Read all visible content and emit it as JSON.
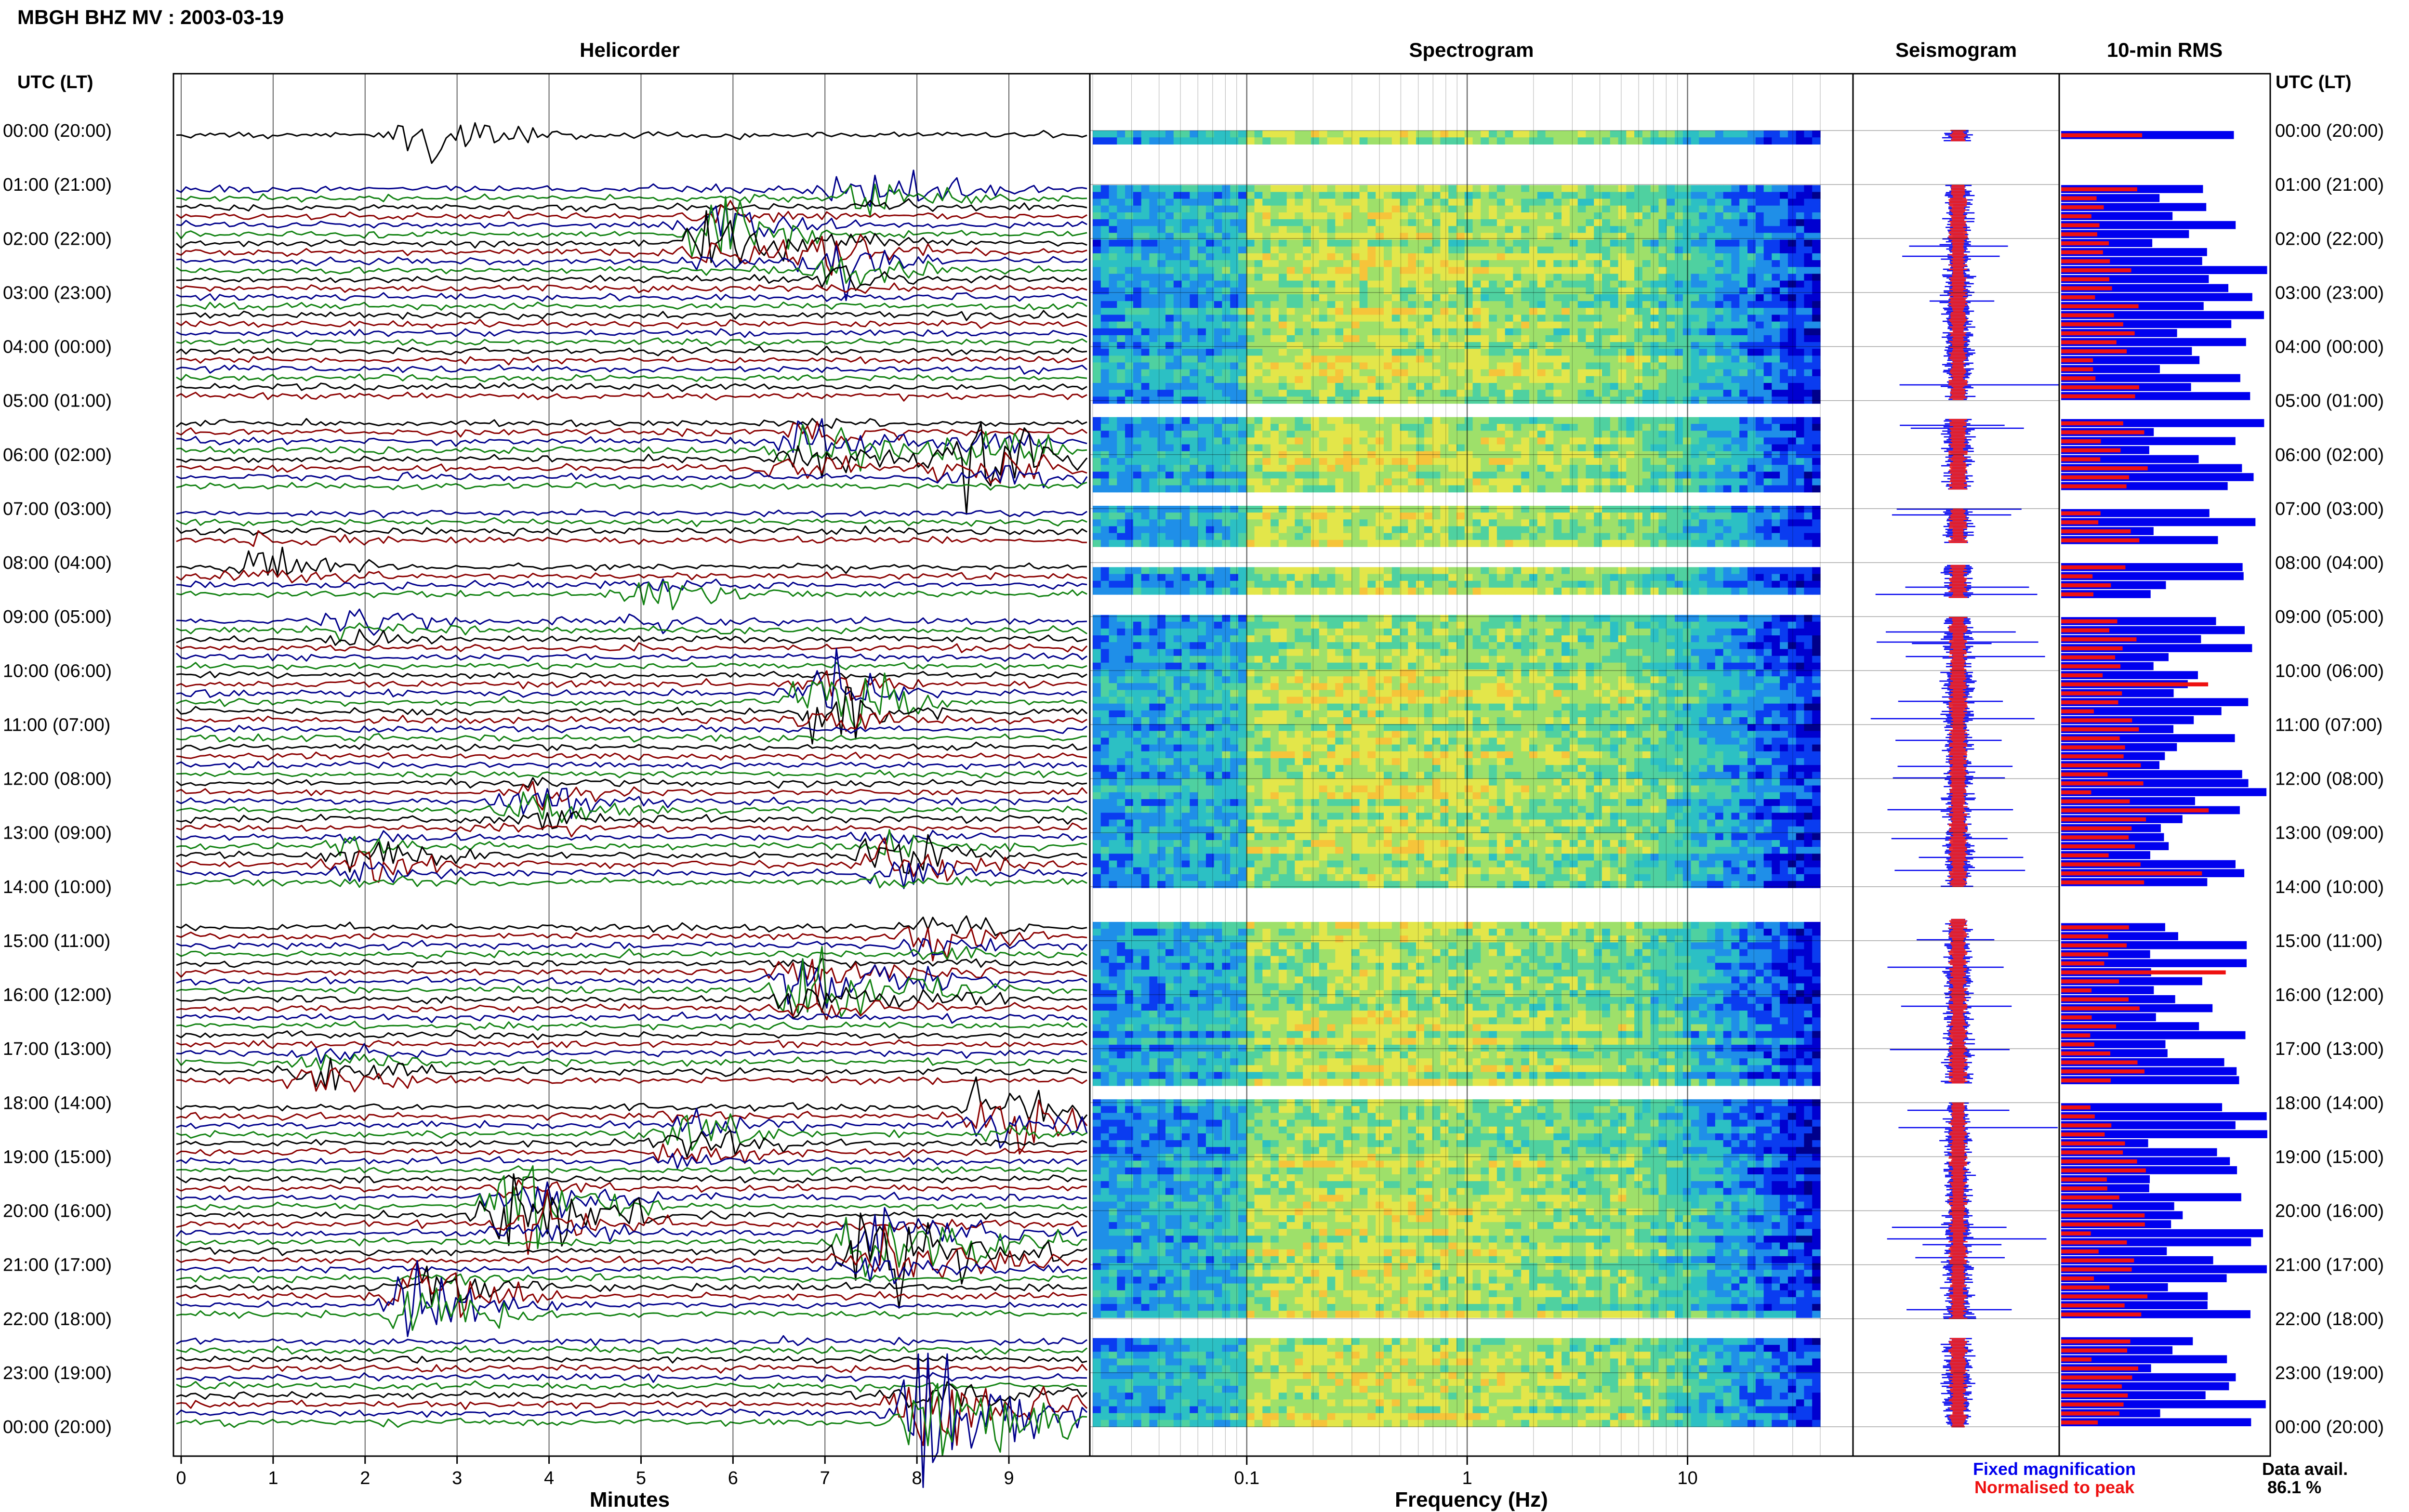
{
  "page": {
    "title": "MBGH BHZ MV : 2003-03-19",
    "utc_label_left": "UTC (LT)",
    "utc_label_right": "UTC (LT)"
  },
  "panels": {
    "helicorder": "Helicorder",
    "spectrogram": "Spectrogram",
    "seismogram": "Seismogram",
    "rms": "10-min RMS"
  },
  "axes": {
    "minutes_label": "Minutes",
    "minute_ticks": [
      "0",
      "1",
      "2",
      "3",
      "4",
      "5",
      "6",
      "7",
      "8",
      "9"
    ],
    "frequency_label": "Frequency (Hz)",
    "frequency_ticks": [
      "0.1",
      "1",
      "10"
    ]
  },
  "time_labels": [
    "00:00 (20:00)",
    "01:00 (21:00)",
    "02:00 (22:00)",
    "03:00 (23:00)",
    "04:00 (00:00)",
    "05:00 (01:00)",
    "06:00 (02:00)",
    "07:00 (03:00)",
    "08:00 (04:00)",
    "09:00 (05:00)",
    "10:00 (06:00)",
    "11:00 (07:00)",
    "12:00 (08:00)",
    "13:00 (09:00)",
    "14:00 (10:00)",
    "15:00 (11:00)",
    "16:00 (12:00)",
    "17:00 (13:00)",
    "18:00 (14:00)",
    "19:00 (15:00)",
    "20:00 (16:00)",
    "21:00 (17:00)",
    "22:00 (18:00)",
    "23:00 (19:00)",
    "00:00 (20:00)"
  ],
  "legend": {
    "fixed": "Fixed magnification",
    "normalised": "Normalised to peak"
  },
  "data_avail": {
    "label": "Data avail.",
    "value": "86.1 %"
  },
  "colors": {
    "trace_black": "#000000",
    "trace_red": "#8b0000",
    "trace_blue": "#00008b",
    "trace_green": "#128212",
    "fixed_blue": "#0000ee",
    "normalised_red": "#ee1111"
  },
  "chart_data": {
    "type": "heatmap",
    "station": "MBGH",
    "channel": "BHZ",
    "network": "MV",
    "date": "2003-03-19",
    "helicorder_xrange_minutes": [
      0,
      10
    ],
    "frequency_range_hz": [
      0.02,
      40
    ],
    "frequency_scale": "log",
    "data_gaps_utc_hours": [
      [
        0.2,
        1.0
      ],
      [
        5.0,
        5.35
      ],
      [
        6.65,
        7.0
      ],
      [
        7.65,
        8.05
      ],
      [
        8.65,
        9.0
      ],
      [
        14.0,
        14.6
      ],
      [
        17.65,
        18.0
      ],
      [
        22.0,
        22.35
      ]
    ],
    "data_availability_percent": 86.1
  }
}
